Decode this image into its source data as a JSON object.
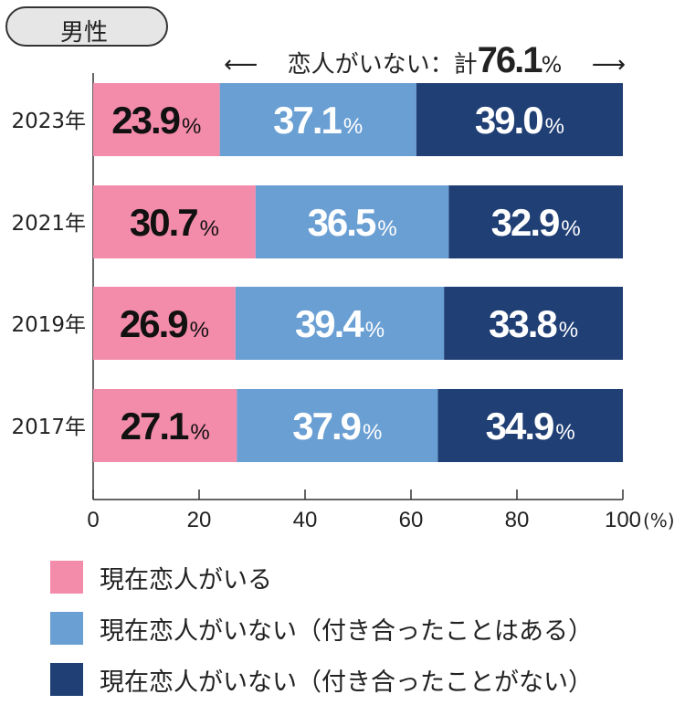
{
  "badge": "男性",
  "total_annotation": {
    "arrow_left": "⟵",
    "label": "恋人がいない：計",
    "value": "76.1",
    "unit": "%",
    "arrow_right": "⟶"
  },
  "colors": {
    "pink": "#f38bab",
    "lightblue": "#6a9fd3",
    "navy": "#203f75"
  },
  "chart_data": {
    "type": "bar",
    "orientation": "horizontal-stacked",
    "categories": [
      "2023年",
      "2021年",
      "2019年",
      "2017年"
    ],
    "series": [
      {
        "name": "現在恋人がいる",
        "values": [
          23.9,
          30.7,
          26.9,
          27.1
        ],
        "color": "#f38bab"
      },
      {
        "name": "現在恋人がいない（付き合ったことはある）",
        "values": [
          37.1,
          36.5,
          39.4,
          37.9
        ],
        "color": "#6a9fd3"
      },
      {
        "name": "現在恋人がいない（付き合ったことがない）",
        "values": [
          39.0,
          32.9,
          33.8,
          34.9
        ],
        "color": "#203f75"
      }
    ],
    "xlim": [
      0,
      100
    ],
    "xticks": [
      "0",
      "20",
      "40",
      "60",
      "80",
      "100"
    ],
    "xunit": "(%)",
    "data_label_unit": "%",
    "legend_placement": "bottom"
  }
}
